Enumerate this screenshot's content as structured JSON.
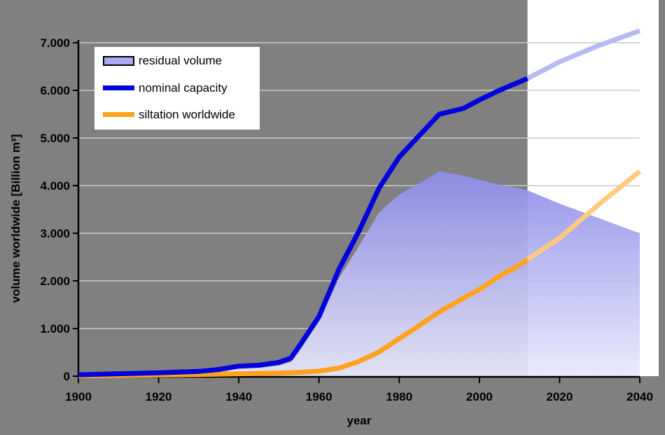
{
  "chart_data": {
    "type": "area+line",
    "xlabel": "year",
    "ylabel": "volume worldwide [Billion m³]",
    "xlim": [
      1900,
      2040
    ],
    "ylim": [
      0,
      7000
    ],
    "x_ticks": [
      1900,
      1920,
      1940,
      1960,
      1980,
      2000,
      2020,
      2040
    ],
    "y_ticks": [
      0,
      1000,
      2000,
      3000,
      4000,
      5000,
      6000,
      7000
    ],
    "y_tick_labels": [
      "0",
      "1.000",
      "2.000",
      "3.000",
      "4.000",
      "5.000",
      "6.000",
      "7.000"
    ],
    "grid": "horizontal",
    "colors": {
      "plot_background": "#808080",
      "projection_band": "#ffffff",
      "gridline": "#c9c9c9",
      "axis": "#000000"
    },
    "projection_band": {
      "start_year": 2012,
      "end_year": 2040
    },
    "legend": {
      "position": "top-left",
      "background": "#ffffff"
    },
    "series": [
      {
        "name": "residual volume",
        "type": "area",
        "color_top": "#8c8ce9",
        "color_bottom": "#e9e9fc",
        "legend_swatch": "#aaaaf0",
        "points": [
          [
            1900,
            20
          ],
          [
            1910,
            30
          ],
          [
            1920,
            45
          ],
          [
            1930,
            60
          ],
          [
            1935,
            90
          ],
          [
            1940,
            160
          ],
          [
            1945,
            175
          ],
          [
            1950,
            225
          ],
          [
            1953,
            300
          ],
          [
            1955,
            520
          ],
          [
            1960,
            1150
          ],
          [
            1965,
            2060
          ],
          [
            1970,
            2740
          ],
          [
            1975,
            3440
          ],
          [
            1980,
            3810
          ],
          [
            1985,
            4050
          ],
          [
            1990,
            4300
          ],
          [
            1995,
            4230
          ],
          [
            2000,
            4120
          ],
          [
            2005,
            4020
          ],
          [
            2012,
            3900
          ],
          [
            2020,
            3620
          ],
          [
            2030,
            3310
          ],
          [
            2040,
            3000
          ]
        ]
      },
      {
        "name": "nominal capacity",
        "type": "line",
        "color": "#0202dd",
        "projection_color": "#b9b9f2",
        "points": [
          [
            1900,
            30
          ],
          [
            1910,
            50
          ],
          [
            1920,
            70
          ],
          [
            1930,
            100
          ],
          [
            1935,
            140
          ],
          [
            1940,
            210
          ],
          [
            1945,
            230
          ],
          [
            1950,
            290
          ],
          [
            1953,
            380
          ],
          [
            1955,
            620
          ],
          [
            1958,
            1000
          ],
          [
            1960,
            1250
          ],
          [
            1965,
            2250
          ],
          [
            1970,
            3050
          ],
          [
            1975,
            3950
          ],
          [
            1980,
            4600
          ],
          [
            1985,
            5050
          ],
          [
            1990,
            5500
          ],
          [
            1996,
            5620
          ],
          [
            2000,
            5800
          ],
          [
            2005,
            6000
          ],
          [
            2012,
            6250
          ]
        ],
        "projection_points": [
          [
            2012,
            6250
          ],
          [
            2020,
            6600
          ],
          [
            2030,
            6950
          ],
          [
            2040,
            7250
          ]
        ]
      },
      {
        "name": "siltation worldwide",
        "type": "line",
        "color": "#ffa21e",
        "projection_color": "#ffca80",
        "points": [
          [
            1900,
            10
          ],
          [
            1910,
            15
          ],
          [
            1920,
            25
          ],
          [
            1930,
            35
          ],
          [
            1940,
            50
          ],
          [
            1950,
            65
          ],
          [
            1955,
            80
          ],
          [
            1960,
            105
          ],
          [
            1965,
            170
          ],
          [
            1970,
            310
          ],
          [
            1975,
            510
          ],
          [
            1980,
            790
          ],
          [
            1985,
            1060
          ],
          [
            1990,
            1350
          ],
          [
            1995,
            1590
          ],
          [
            2000,
            1820
          ],
          [
            2005,
            2100
          ],
          [
            2010,
            2330
          ],
          [
            2012,
            2450
          ]
        ],
        "projection_points": [
          [
            2012,
            2450
          ],
          [
            2020,
            2900
          ],
          [
            2030,
            3620
          ],
          [
            2040,
            4300
          ]
        ]
      }
    ]
  }
}
